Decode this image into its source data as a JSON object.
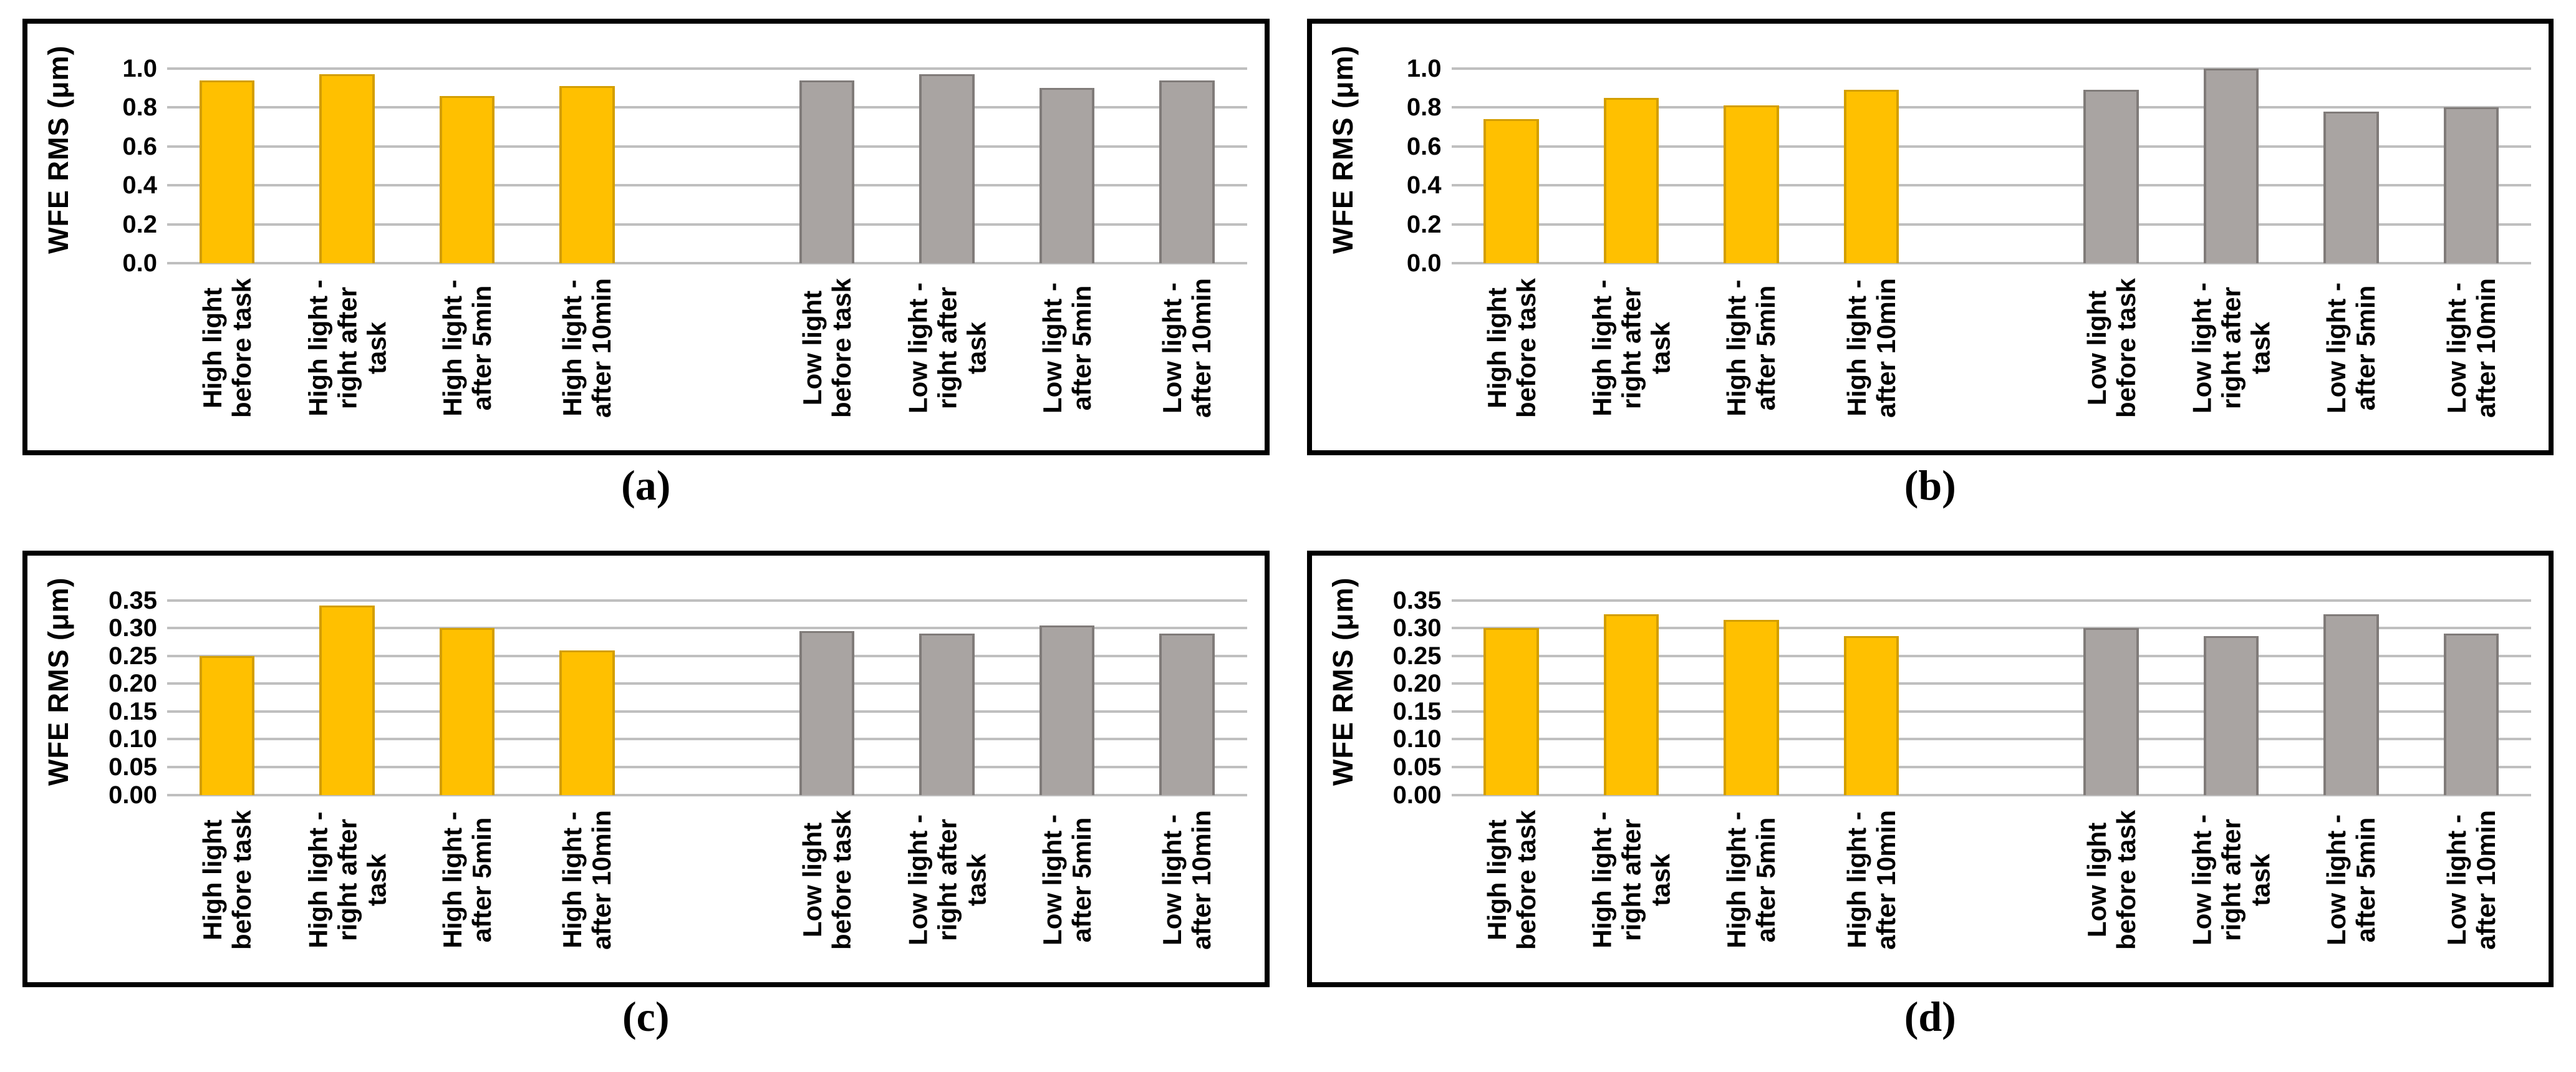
{
  "figure": {
    "gridline_color": "#BFBFBF",
    "background_color": "#FFFFFF",
    "border_color": "#000000"
  },
  "chart_data": [
    {
      "type": "bar",
      "caption": "(a)",
      "ylabel": "WFE RMS (μm)",
      "ylim": [
        0,
        1.0
      ],
      "tick_values": [
        0.0,
        0.2,
        0.4,
        0.6,
        0.8,
        1.0
      ],
      "tick_labels": [
        "0.0",
        "0.2",
        "0.4",
        "0.6",
        "0.8",
        "1.0"
      ],
      "grid": true,
      "legend": "none",
      "group_gap_after": 4,
      "categories": [
        "High light\nbefore task",
        "High light -\nright after\ntask",
        "High light -\nafter 5min",
        "High light -\nafter 10min",
        "Low light\nbefore task",
        "Low light -\nright after\ntask",
        "Low light -\nafter 5min",
        "Low light -\nafter 10min"
      ],
      "series": [
        {
          "name": "High light",
          "color": "#FFC000",
          "border_color": "#D39E00",
          "values": [
            0.94,
            0.97,
            0.86,
            0.91
          ]
        },
        {
          "name": "Low light",
          "color": "#A9A4A2",
          "border_color": "#807B79",
          "values": [
            0.94,
            0.97,
            0.9,
            0.94
          ]
        }
      ]
    },
    {
      "type": "bar",
      "caption": "(b)",
      "ylabel": "WFE RMS (μm)",
      "ylim": [
        0,
        1.0
      ],
      "tick_values": [
        0.0,
        0.2,
        0.4,
        0.6,
        0.8,
        1.0
      ],
      "tick_labels": [
        "0.0",
        "0.2",
        "0.4",
        "0.6",
        "0.8",
        "1.0"
      ],
      "grid": true,
      "legend": "none",
      "group_gap_after": 4,
      "categories": [
        "High light\nbefore task",
        "High light -\nright after\ntask",
        "High light -\nafter 5min",
        "High light -\nafter 10min",
        "Low light\nbefore task",
        "Low light -\nright after\ntask",
        "Low light -\nafter 5min",
        "Low light -\nafter 10min"
      ],
      "series": [
        {
          "name": "High light",
          "color": "#FFC000",
          "border_color": "#D39E00",
          "values": [
            0.74,
            0.85,
            0.81,
            0.89
          ]
        },
        {
          "name": "Low light",
          "color": "#A9A4A2",
          "border_color": "#807B79",
          "values": [
            0.89,
            1.0,
            0.78,
            0.8
          ]
        }
      ]
    },
    {
      "type": "bar",
      "caption": "(c)",
      "ylabel": "WFE RMS (μm)",
      "ylim": [
        0,
        0.35
      ],
      "tick_values": [
        0.0,
        0.05,
        0.1,
        0.15,
        0.2,
        0.25,
        0.3,
        0.35
      ],
      "tick_labels": [
        "0.00",
        "0.05",
        "0.10",
        "0.15",
        "0.20",
        "0.25",
        "0.30",
        "0.35"
      ],
      "grid": true,
      "legend": "none",
      "group_gap_after": 4,
      "categories": [
        "High light\nbefore task",
        "High light -\nright after\ntask",
        "High light -\nafter 5min",
        "High light -\nafter 10min",
        "Low light\nbefore task",
        "Low light -\nright after\ntask",
        "Low light -\nafter 5min",
        "Low light -\nafter 10min"
      ],
      "series": [
        {
          "name": "High light",
          "color": "#FFC000",
          "border_color": "#D39E00",
          "values": [
            0.25,
            0.34,
            0.3,
            0.26
          ]
        },
        {
          "name": "Low light",
          "color": "#A9A4A2",
          "border_color": "#807B79",
          "values": [
            0.295,
            0.29,
            0.305,
            0.29
          ]
        }
      ]
    },
    {
      "type": "bar",
      "caption": "(d)",
      "ylabel": "WFE RMS (μm)",
      "ylim": [
        0,
        0.35
      ],
      "tick_values": [
        0.0,
        0.05,
        0.1,
        0.15,
        0.2,
        0.25,
        0.3,
        0.35
      ],
      "tick_labels": [
        "0.00",
        "0.05",
        "0.10",
        "0.15",
        "0.20",
        "0.25",
        "0.30",
        "0.35"
      ],
      "grid": true,
      "legend": "none",
      "group_gap_after": 4,
      "categories": [
        "High light\nbefore task",
        "High light -\nright after\ntask",
        "High light -\nafter 5min",
        "High light -\nafter 10min",
        "Low light\nbefore task",
        "Low light -\nright after\ntask",
        "Low light -\nafter 5min",
        "Low light -\nafter 10min"
      ],
      "series": [
        {
          "name": "High light",
          "color": "#FFC000",
          "border_color": "#D39E00",
          "values": [
            0.3,
            0.325,
            0.315,
            0.285
          ]
        },
        {
          "name": "Low light",
          "color": "#A9A4A2",
          "border_color": "#807B79",
          "values": [
            0.3,
            0.285,
            0.325,
            0.29
          ]
        }
      ]
    }
  ]
}
